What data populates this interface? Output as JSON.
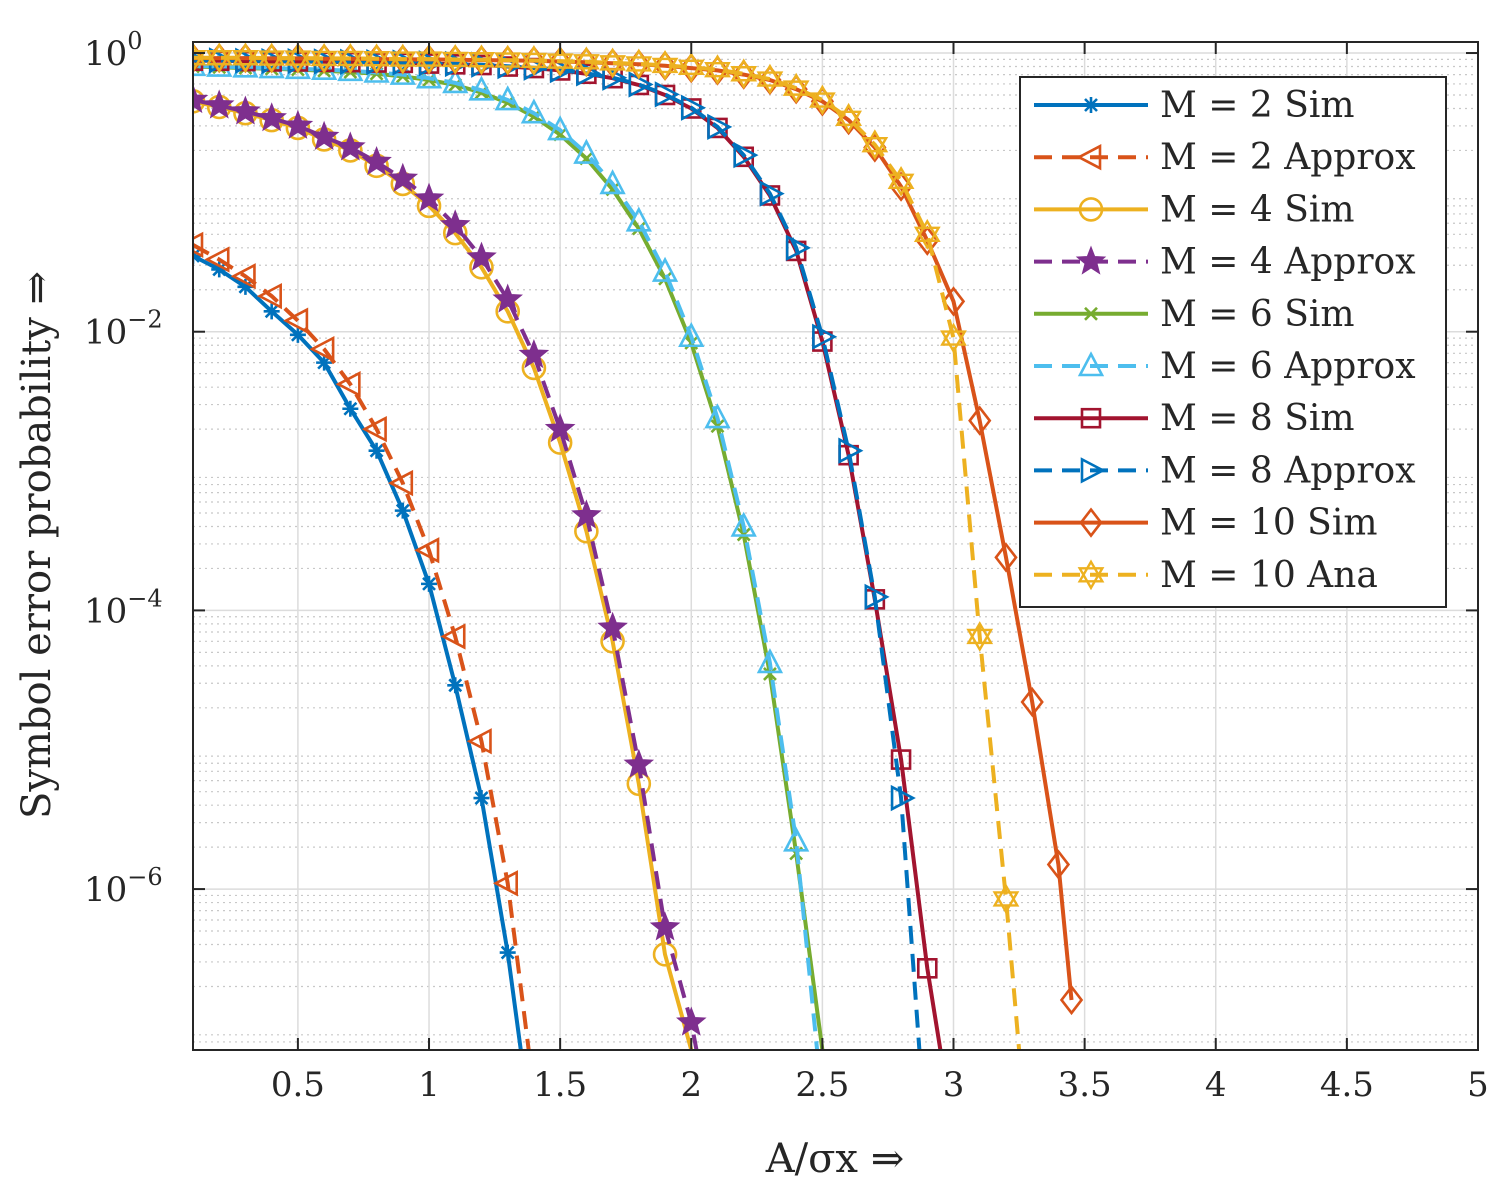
{
  "chart_data": {
    "type": "line",
    "title": "",
    "xlabel": "A/σx ⇒",
    "ylabel": "Symbol error probability ⇒",
    "yscale": "log",
    "xlim": [
      0.1,
      5
    ],
    "ylim": [
      7e-08,
      1.2
    ],
    "grid": true,
    "legend_position": "top-right",
    "x_ticks": [
      {
        "value": 0.5,
        "label": "0.5"
      },
      {
        "value": 1,
        "label": "1"
      },
      {
        "value": 1.5,
        "label": "1.5"
      },
      {
        "value": 2,
        "label": "2"
      },
      {
        "value": 2.5,
        "label": "2.5"
      },
      {
        "value": 3,
        "label": "3"
      },
      {
        "value": 3.5,
        "label": "3.5"
      },
      {
        "value": 4,
        "label": "4"
      },
      {
        "value": 4.5,
        "label": "4.5"
      },
      {
        "value": 5,
        "label": "5"
      }
    ],
    "y_ticks": [
      {
        "value": 1,
        "base": "10",
        "exp": "0"
      },
      {
        "value": 0.01,
        "base": "10",
        "exp": "−2"
      },
      {
        "value": 0.0001,
        "base": "10",
        "exp": "−4"
      },
      {
        "value": 1e-06,
        "base": "10",
        "exp": "−6"
      }
    ],
    "series": [
      {
        "name": "M = 2 Sim",
        "color": "#0072BD",
        "dash": "solid",
        "marker": "asterisk",
        "x": [
          0.1,
          0.2,
          0.3,
          0.4,
          0.5,
          0.6,
          0.7,
          0.8,
          0.9,
          1.0,
          1.1,
          1.2,
          1.3,
          1.35
        ],
        "y": [
          0.035,
          0.028,
          0.021,
          0.014,
          0.0095,
          0.006,
          0.0028,
          0.0014,
          0.00052,
          0.000155,
          2.9e-05,
          4.5e-06,
          3.5e-07,
          7e-08
        ]
      },
      {
        "name": "M = 2 Approx",
        "color": "#D95319",
        "dash": "dashed",
        "marker": "triangle-left",
        "x": [
          0.1,
          0.2,
          0.3,
          0.4,
          0.5,
          0.6,
          0.7,
          0.8,
          0.9,
          1.0,
          1.1,
          1.2,
          1.3,
          1.38
        ],
        "y": [
          0.042,
          0.033,
          0.025,
          0.018,
          0.012,
          0.0075,
          0.0042,
          0.002,
          0.00082,
          0.00027,
          6.5e-05,
          1.15e-05,
          1.1e-06,
          7e-08
        ]
      },
      {
        "name": "M = 4 Sim",
        "color": "#EDB120",
        "dash": "solid",
        "marker": "circle",
        "x": [
          0.1,
          0.2,
          0.3,
          0.4,
          0.5,
          0.6,
          0.7,
          0.8,
          0.9,
          1.0,
          1.1,
          1.2,
          1.3,
          1.4,
          1.5,
          1.6,
          1.7,
          1.8,
          1.9,
          2.0
        ],
        "y": [
          0.45,
          0.41,
          0.37,
          0.33,
          0.29,
          0.24,
          0.2,
          0.155,
          0.115,
          0.08,
          0.051,
          0.029,
          0.014,
          0.0055,
          0.0016,
          0.00037,
          6e-05,
          5.7e-06,
          3.4e-07,
          7e-08
        ]
      },
      {
        "name": "M = 4 Approx",
        "color": "#7E2F8E",
        "dash": "dashed",
        "marker": "star5",
        "x": [
          0.1,
          0.2,
          0.3,
          0.4,
          0.5,
          0.6,
          0.7,
          0.8,
          0.9,
          1.0,
          1.1,
          1.2,
          1.3,
          1.4,
          1.5,
          1.6,
          1.7,
          1.8,
          1.9,
          2.0,
          2.02
        ],
        "y": [
          0.46,
          0.42,
          0.38,
          0.34,
          0.3,
          0.25,
          0.21,
          0.165,
          0.125,
          0.09,
          0.058,
          0.034,
          0.017,
          0.0068,
          0.002,
          0.00048,
          7.5e-05,
          7.8e-06,
          5.3e-07,
          1.1e-07,
          7e-08
        ]
      },
      {
        "name": "M = 6 Sim",
        "color": "#77AC30",
        "dash": "solid",
        "marker": "cross",
        "x": [
          0.1,
          0.2,
          0.3,
          0.4,
          0.5,
          0.6,
          0.7,
          0.8,
          0.9,
          1.0,
          1.1,
          1.2,
          1.3,
          1.4,
          1.5,
          1.6,
          1.7,
          1.8,
          1.9,
          2.0,
          2.1,
          2.2,
          2.3,
          2.4,
          2.5
        ],
        "y": [
          0.8,
          0.79,
          0.78,
          0.77,
          0.76,
          0.745,
          0.73,
          0.71,
          0.68,
          0.64,
          0.59,
          0.52,
          0.44,
          0.35,
          0.26,
          0.175,
          0.105,
          0.055,
          0.024,
          0.0083,
          0.0021,
          0.00035,
          3.5e-05,
          1.8e-06,
          7e-08
        ]
      },
      {
        "name": "M = 6 Approx",
        "color": "#4DBEEE",
        "dash": "dashed",
        "marker": "triangle-up",
        "x": [
          0.1,
          0.2,
          0.3,
          0.4,
          0.5,
          0.6,
          0.7,
          0.8,
          0.9,
          1.0,
          1.1,
          1.2,
          1.3,
          1.4,
          1.5,
          1.6,
          1.7,
          1.8,
          1.9,
          2.0,
          2.1,
          2.2,
          2.3,
          2.4,
          2.48
        ],
        "y": [
          0.81,
          0.8,
          0.79,
          0.78,
          0.77,
          0.76,
          0.745,
          0.725,
          0.7,
          0.66,
          0.61,
          0.54,
          0.46,
          0.37,
          0.28,
          0.19,
          0.115,
          0.062,
          0.027,
          0.0092,
          0.0024,
          0.0004,
          4.2e-05,
          2.2e-06,
          7e-08
        ]
      },
      {
        "name": "M = 8 Sim",
        "color": "#A2142F",
        "dash": "solid",
        "marker": "square",
        "x": [
          0.1,
          0.2,
          0.3,
          0.4,
          0.5,
          0.6,
          0.7,
          0.8,
          0.9,
          1.0,
          1.1,
          1.2,
          1.3,
          1.4,
          1.5,
          1.6,
          1.7,
          1.8,
          1.9,
          2.0,
          2.1,
          2.2,
          2.3,
          2.4,
          2.5,
          2.6,
          2.7,
          2.8,
          2.9,
          2.95
        ],
        "y": [
          0.88,
          0.88,
          0.875,
          0.87,
          0.87,
          0.865,
          0.86,
          0.855,
          0.85,
          0.84,
          0.83,
          0.82,
          0.8,
          0.78,
          0.75,
          0.71,
          0.66,
          0.59,
          0.5,
          0.4,
          0.29,
          0.18,
          0.095,
          0.038,
          0.0085,
          0.0013,
          0.00012,
          8.5e-06,
          2.7e-07,
          7e-08
        ]
      },
      {
        "name": "M = 8 Approx",
        "color": "#0072BD",
        "dash": "dashed",
        "marker": "triangle-right",
        "x": [
          0.1,
          0.2,
          0.3,
          0.4,
          0.5,
          0.6,
          0.7,
          0.8,
          0.9,
          1.0,
          1.1,
          1.2,
          1.3,
          1.4,
          1.5,
          1.6,
          1.7,
          1.8,
          1.9,
          2.0,
          2.1,
          2.2,
          2.3,
          2.4,
          2.5,
          2.6,
          2.7,
          2.8,
          2.87
        ],
        "y": [
          0.885,
          0.885,
          0.88,
          0.875,
          0.875,
          0.87,
          0.865,
          0.86,
          0.855,
          0.845,
          0.835,
          0.825,
          0.805,
          0.785,
          0.755,
          0.715,
          0.665,
          0.595,
          0.505,
          0.405,
          0.295,
          0.185,
          0.098,
          0.04,
          0.0092,
          0.0014,
          0.000125,
          4.5e-06,
          7e-08
        ]
      },
      {
        "name": "M = 10 Sim",
        "color": "#D95319",
        "dash": "solid",
        "marker": "diamond",
        "x": [
          0.1,
          0.2,
          0.3,
          0.4,
          0.5,
          0.6,
          0.7,
          0.8,
          0.9,
          1.0,
          1.1,
          1.2,
          1.3,
          1.4,
          1.5,
          1.6,
          1.7,
          1.8,
          1.9,
          2.0,
          2.1,
          2.2,
          2.3,
          2.4,
          2.5,
          2.6,
          2.7,
          2.8,
          2.9,
          3.0,
          3.1,
          3.2,
          3.3,
          3.4,
          3.45
        ],
        "y": [
          0.92,
          0.92,
          0.92,
          0.915,
          0.915,
          0.91,
          0.91,
          0.905,
          0.9,
          0.9,
          0.895,
          0.89,
          0.885,
          0.88,
          0.87,
          0.86,
          0.845,
          0.83,
          0.81,
          0.78,
          0.75,
          0.7,
          0.64,
          0.55,
          0.45,
          0.33,
          0.21,
          0.11,
          0.045,
          0.0165,
          0.0023,
          0.00024,
          2.2e-05,
          1.5e-06,
          1.6e-07
        ]
      },
      {
        "name": "M = 10 Ana",
        "color": "#EDB120",
        "dash": "dashed",
        "marker": "hexagram",
        "x": [
          0.1,
          0.2,
          0.3,
          0.4,
          0.5,
          0.6,
          0.7,
          0.8,
          0.9,
          1.0,
          1.1,
          1.2,
          1.3,
          1.4,
          1.5,
          1.6,
          1.7,
          1.8,
          1.9,
          2.0,
          2.1,
          2.2,
          2.3,
          2.4,
          2.5,
          2.6,
          2.7,
          2.8,
          2.9,
          3.0,
          3.1,
          3.2,
          3.25
        ],
        "y": [
          0.925,
          0.925,
          0.925,
          0.92,
          0.92,
          0.915,
          0.915,
          0.91,
          0.905,
          0.905,
          0.9,
          0.895,
          0.89,
          0.885,
          0.875,
          0.865,
          0.85,
          0.835,
          0.815,
          0.79,
          0.76,
          0.71,
          0.65,
          0.56,
          0.46,
          0.34,
          0.22,
          0.12,
          0.05,
          0.009,
          6.5e-05,
          8.5e-07,
          7e-08
        ]
      }
    ],
    "legend": [
      {
        "label": "M = 2 Sim"
      },
      {
        "label": "M = 2 Approx"
      },
      {
        "label": "M = 4 Sim"
      },
      {
        "label": "M = 4 Approx"
      },
      {
        "label": "M = 6 Sim"
      },
      {
        "label": "M = 6 Approx"
      },
      {
        "label": "M = 8 Sim"
      },
      {
        "label": "M = 8 Approx"
      },
      {
        "label": "M = 10 Sim"
      },
      {
        "label": "M = 10 Ana"
      }
    ]
  }
}
